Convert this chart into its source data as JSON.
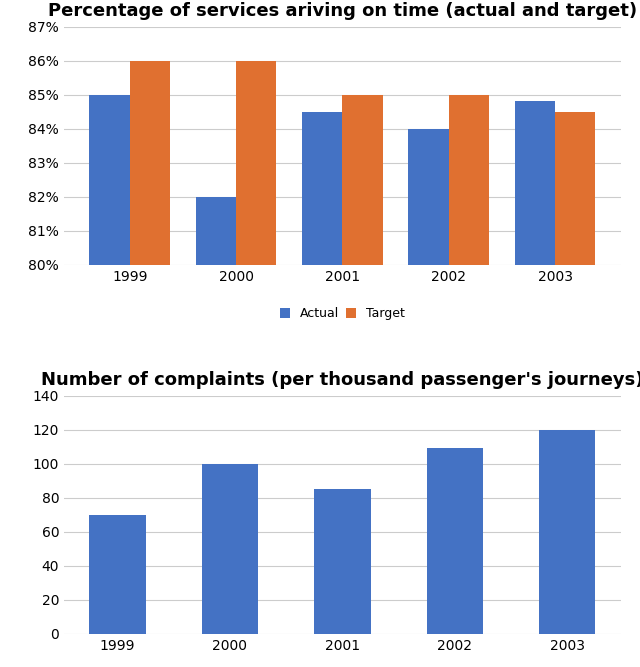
{
  "chart1": {
    "title": "Percentage of services ariving on time (actual and target)",
    "years": [
      "1999",
      "2000",
      "2001",
      "2002",
      "2003"
    ],
    "actual": [
      85,
      82,
      84.5,
      84,
      84.8
    ],
    "target": [
      86,
      86,
      85,
      85,
      84.5
    ],
    "ylim": [
      80,
      87
    ],
    "yticks": [
      80,
      81,
      82,
      83,
      84,
      85,
      86,
      87
    ],
    "color_actual": "#4472C4",
    "color_target": "#E07030",
    "legend_labels": [
      "Actual",
      "Target"
    ],
    "bar_width": 0.38
  },
  "chart2": {
    "title": "Number of complaints (per thousand passenger's journeys)",
    "years": [
      "1999",
      "2000",
      "2001",
      "2002",
      "2003"
    ],
    "values": [
      70,
      100,
      85,
      109,
      120
    ],
    "ylim": [
      0,
      140
    ],
    "yticks": [
      0,
      20,
      40,
      60,
      80,
      100,
      120,
      140
    ],
    "color": "#4472C4",
    "bar_width": 0.5
  },
  "background_color": "#ffffff",
  "grid_color": "#cccccc",
  "title_fontsize": 13,
  "tick_fontsize": 10
}
